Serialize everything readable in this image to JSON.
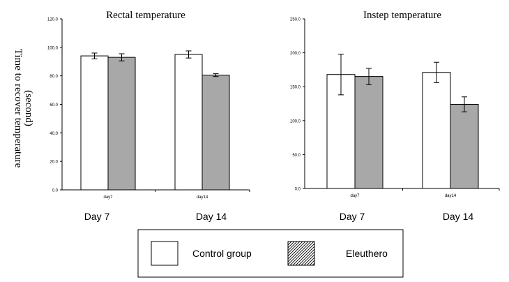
{
  "figure": {
    "ylabel_line1": "Time  to  recover  temperature",
    "ylabel_line2": "(second)",
    "day_captions": [
      "Day 7",
      "Day 14",
      "Day 7",
      "Day 14"
    ]
  },
  "legend": {
    "items": [
      {
        "label": "Control group",
        "pattern": "white"
      },
      {
        "label": "Eleuthero",
        "pattern": "hatched"
      }
    ]
  },
  "colors": {
    "control_fill": "#ffffff",
    "eleuthero_fill": "#a8a8a8",
    "bar_stroke": "#000000"
  },
  "chart_data": [
    {
      "type": "bar",
      "title": "Rectal temperature",
      "categories": [
        "day7",
        "day14"
      ],
      "series": [
        {
          "name": "Control group",
          "values": [
            94,
            95
          ],
          "errors": [
            2,
            2.5
          ]
        },
        {
          "name": "Eleuthero",
          "values": [
            93,
            80.5
          ],
          "errors": [
            2.5,
            1
          ]
        }
      ],
      "ylim": [
        0,
        120
      ],
      "yticks": [
        "0.0",
        "20.0",
        "40.0",
        "60.0",
        "80.0",
        "100.0",
        "120.0"
      ],
      "grid": false,
      "legend": "bottom"
    },
    {
      "type": "bar",
      "title": "Instep temperature",
      "categories": [
        "day7",
        "day14"
      ],
      "series": [
        {
          "name": "Control group",
          "values": [
            168,
            171
          ],
          "errors": [
            30,
            15
          ]
        },
        {
          "name": "Eleuthero",
          "values": [
            165,
            124
          ],
          "errors": [
            12,
            11
          ]
        }
      ],
      "ylim": [
        0,
        250
      ],
      "yticks": [
        "0.0",
        "50.0",
        "100.0",
        "150.0",
        "200.0",
        "250.0"
      ],
      "grid": false,
      "legend": "bottom"
    }
  ]
}
